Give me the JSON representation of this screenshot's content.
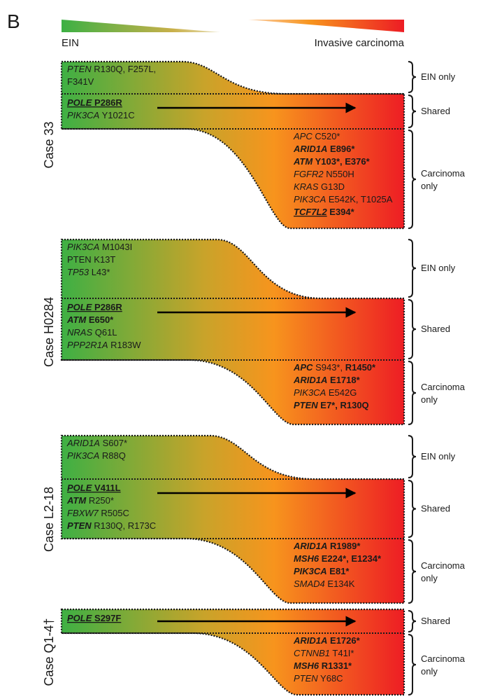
{
  "panel_letter": "B",
  "header": {
    "left_label": "EIN",
    "right_label": "Invasive carcinoma"
  },
  "colors": {
    "ein_green": "#3cb044",
    "mid_orange": "#f7941d",
    "carcinoma_red": "#ed1c24"
  },
  "side_labels": {
    "ein_only": "EIN only",
    "shared": "Shared",
    "carcinoma_line1": "Carcinoma",
    "carcinoma_line2": "only"
  },
  "cases": [
    {
      "label": "Case 33",
      "ein_only": [
        [
          {
            "t": "PTEN",
            "i": true
          },
          {
            "t": " R130Q, F257L,"
          }
        ],
        [
          {
            "t": "F341V"
          }
        ]
      ],
      "shared": [
        [
          {
            "t": "POLE",
            "i": true,
            "b": true,
            "u": true
          },
          {
            "t": " P286R",
            "b": true,
            "u": true
          }
        ],
        [
          {
            "t": "PIK3CA",
            "i": true
          },
          {
            "t": " Y1021C"
          }
        ]
      ],
      "carcinoma_only": [
        [
          {
            "t": "APC",
            "i": true
          },
          {
            "t": " C520*"
          }
        ],
        [
          {
            "t": "ARID1A",
            "i": true,
            "b": true
          },
          {
            "t": " E896*",
            "b": true
          }
        ],
        [
          {
            "t": "ATM",
            "i": true,
            "b": true
          },
          {
            "t": " Y103*, E376*",
            "b": true
          }
        ],
        [
          {
            "t": "FGFR2",
            "i": true
          },
          {
            "t": " N550H"
          }
        ],
        [
          {
            "t": "KRAS",
            "i": true
          },
          {
            "t": " G13D"
          }
        ],
        [
          {
            "t": "PIK3CA",
            "i": true
          },
          {
            "t": " E542K, T1025A"
          }
        ],
        [
          {
            "t": "TCF7L2",
            "i": true,
            "b": true,
            "u": true
          },
          {
            "t": " E394*",
            "b": true
          }
        ]
      ]
    },
    {
      "label": "Case H0284",
      "ein_only": [
        [
          {
            "t": "PIK3CA",
            "i": true
          },
          {
            "t": " M1043I"
          }
        ],
        [
          {
            "t": "PTEN K13T"
          }
        ],
        [
          {
            "t": "TP53",
            "i": true
          },
          {
            "t": " L43*"
          }
        ]
      ],
      "shared": [
        [
          {
            "t": "POLE",
            "i": true,
            "b": true,
            "u": true
          },
          {
            "t": " P286R",
            "b": true,
            "u": true
          }
        ],
        [
          {
            "t": "ATM",
            "i": true,
            "b": true
          },
          {
            "t": " E650*",
            "b": true
          }
        ],
        [
          {
            "t": "NRAS",
            "i": true
          },
          {
            "t": " Q61L"
          }
        ],
        [
          {
            "t": "PPP2R1A",
            "i": true
          },
          {
            "t": " R183W"
          }
        ]
      ],
      "carcinoma_only": [
        [
          {
            "t": "APC",
            "i": true,
            "b": true
          },
          {
            "t": " S943*, ",
            "b": false
          },
          {
            "t": "R1450*",
            "b": true
          }
        ],
        [
          {
            "t": "ARID1A",
            "i": true,
            "b": true
          },
          {
            "t": " E1718*",
            "b": true
          }
        ],
        [
          {
            "t": "PIK3CA",
            "i": true
          },
          {
            "t": " E542G"
          }
        ],
        [
          {
            "t": "PTEN",
            "i": true,
            "b": true
          },
          {
            "t": " E7*, R130Q",
            "b": true
          }
        ]
      ]
    },
    {
      "label": "Case L2-18",
      "ein_only": [
        [
          {
            "t": "ARID1A",
            "i": true
          },
          {
            "t": " S607*"
          }
        ],
        [
          {
            "t": "PIK3CA",
            "i": true
          },
          {
            "t": " R88Q"
          }
        ]
      ],
      "shared": [
        [
          {
            "t": "POLE",
            "i": true,
            "b": true,
            "u": true
          },
          {
            "t": " V411L",
            "b": true,
            "u": true
          }
        ],
        [
          {
            "t": "ATM",
            "i": true,
            "b": true
          },
          {
            "t": " R250*"
          }
        ],
        [
          {
            "t": "FBXW7",
            "i": true
          },
          {
            "t": " R505C"
          }
        ],
        [
          {
            "t": "PTEN",
            "i": true,
            "b": true
          },
          {
            "t": " R130Q, R173C"
          }
        ]
      ],
      "carcinoma_only": [
        [
          {
            "t": "ARID1A",
            "i": true,
            "b": true
          },
          {
            "t": " R1989*",
            "b": true
          }
        ],
        [
          {
            "t": "MSH6",
            "i": true,
            "b": true
          },
          {
            "t": " E224*, E1234*",
            "b": true
          }
        ],
        [
          {
            "t": "PIK3CA",
            "i": true,
            "b": true
          },
          {
            "t": " E81*",
            "b": true
          }
        ],
        [
          {
            "t": "SMAD4",
            "i": true
          },
          {
            "t": " E134K"
          }
        ]
      ]
    },
    {
      "label": "Case Q1-4†",
      "shared": [
        [
          {
            "t": "POLE",
            "i": true,
            "b": true,
            "u": true
          },
          {
            "t": " S297F",
            "b": true,
            "u": true
          }
        ]
      ],
      "carcinoma_only": [
        [
          {
            "t": "ARID1A",
            "i": true,
            "b": true
          },
          {
            "t": " E1726*",
            "b": true
          }
        ],
        [
          {
            "t": "CTNNB1",
            "i": true
          },
          {
            "t": " T41I*"
          }
        ],
        [
          {
            "t": "MSH6",
            "i": true,
            "b": true
          },
          {
            "t": " R1331*",
            "b": true
          }
        ],
        [
          {
            "t": "PTEN",
            "i": true
          },
          {
            "t": " Y68C"
          }
        ]
      ]
    }
  ]
}
